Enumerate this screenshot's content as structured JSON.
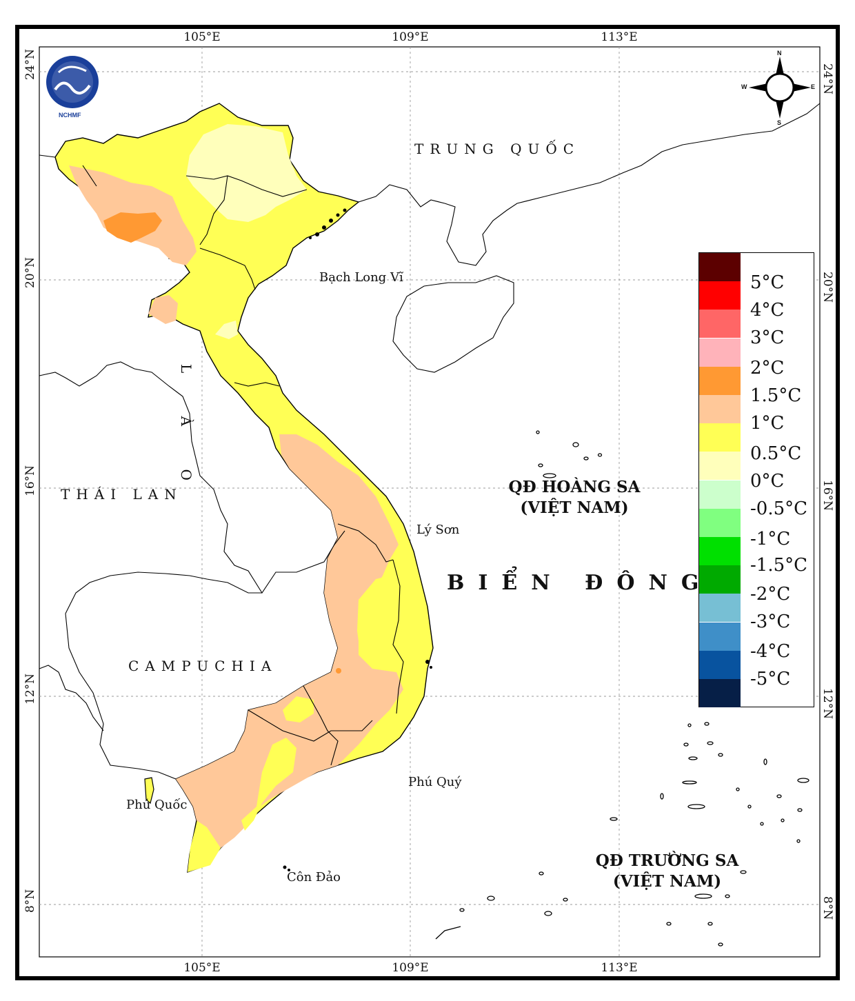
{
  "map": {
    "logo_text": "NCHMF",
    "lon_ticks_top": [
      "105°E",
      "109°E",
      "113°E"
    ],
    "lon_ticks_bottom": [
      "105°E",
      "109°E",
      "113°E"
    ],
    "lat_ticks_left": [
      "24°N",
      "20°N",
      "16°N",
      "12°N",
      "8°N"
    ],
    "lat_ticks_right": [
      "24°N",
      "20°N",
      "16°N",
      "12°N",
      "8°N"
    ],
    "countries": {
      "china": "TRUNG QUỐC",
      "laos": "L À O",
      "thailand": "THÁI LAN",
      "cambodia": "CAMPUCHIA"
    },
    "places": {
      "bach_long_vi": "Bạch Long Vĩ",
      "ly_son": "Lý Sơn",
      "phu_quy": "Phú Quý",
      "phu_quoc": "Phú Quốc",
      "con_dao": "Côn Đảo"
    },
    "sea": "BIỂN ĐÔNG",
    "hoang_sa": {
      "line1": "QĐ HOÀNG SA",
      "line2": "(VIỆT NAM)"
    },
    "truong_sa": {
      "line1": "QĐ TRƯỜNG SA",
      "line2": "(VIỆT NAM)"
    },
    "compass": {
      "n": "N",
      "s": "S",
      "e": "E",
      "w": "W"
    }
  },
  "legend": {
    "colors": [
      "#5c0000",
      "#ff0000",
      "#ff6666",
      "#ffb3ba",
      "#ff9933",
      "#ffc899",
      "#ffff55",
      "#ffffbb",
      "#ccffcc",
      "#80ff80",
      "#00e000",
      "#00aa00",
      "#77bfd4",
      "#3f8fc8",
      "#08539f",
      "#061f47"
    ],
    "labels": [
      "5°C",
      "4°C",
      "3°C",
      "2°C",
      "1.5°C",
      "1°C",
      "0.5°C",
      "0°C",
      "-0.5°C",
      "-1°C",
      "-1.5°C",
      "-2°C",
      "-3°C",
      "-4°C",
      "-5°C"
    ]
  }
}
